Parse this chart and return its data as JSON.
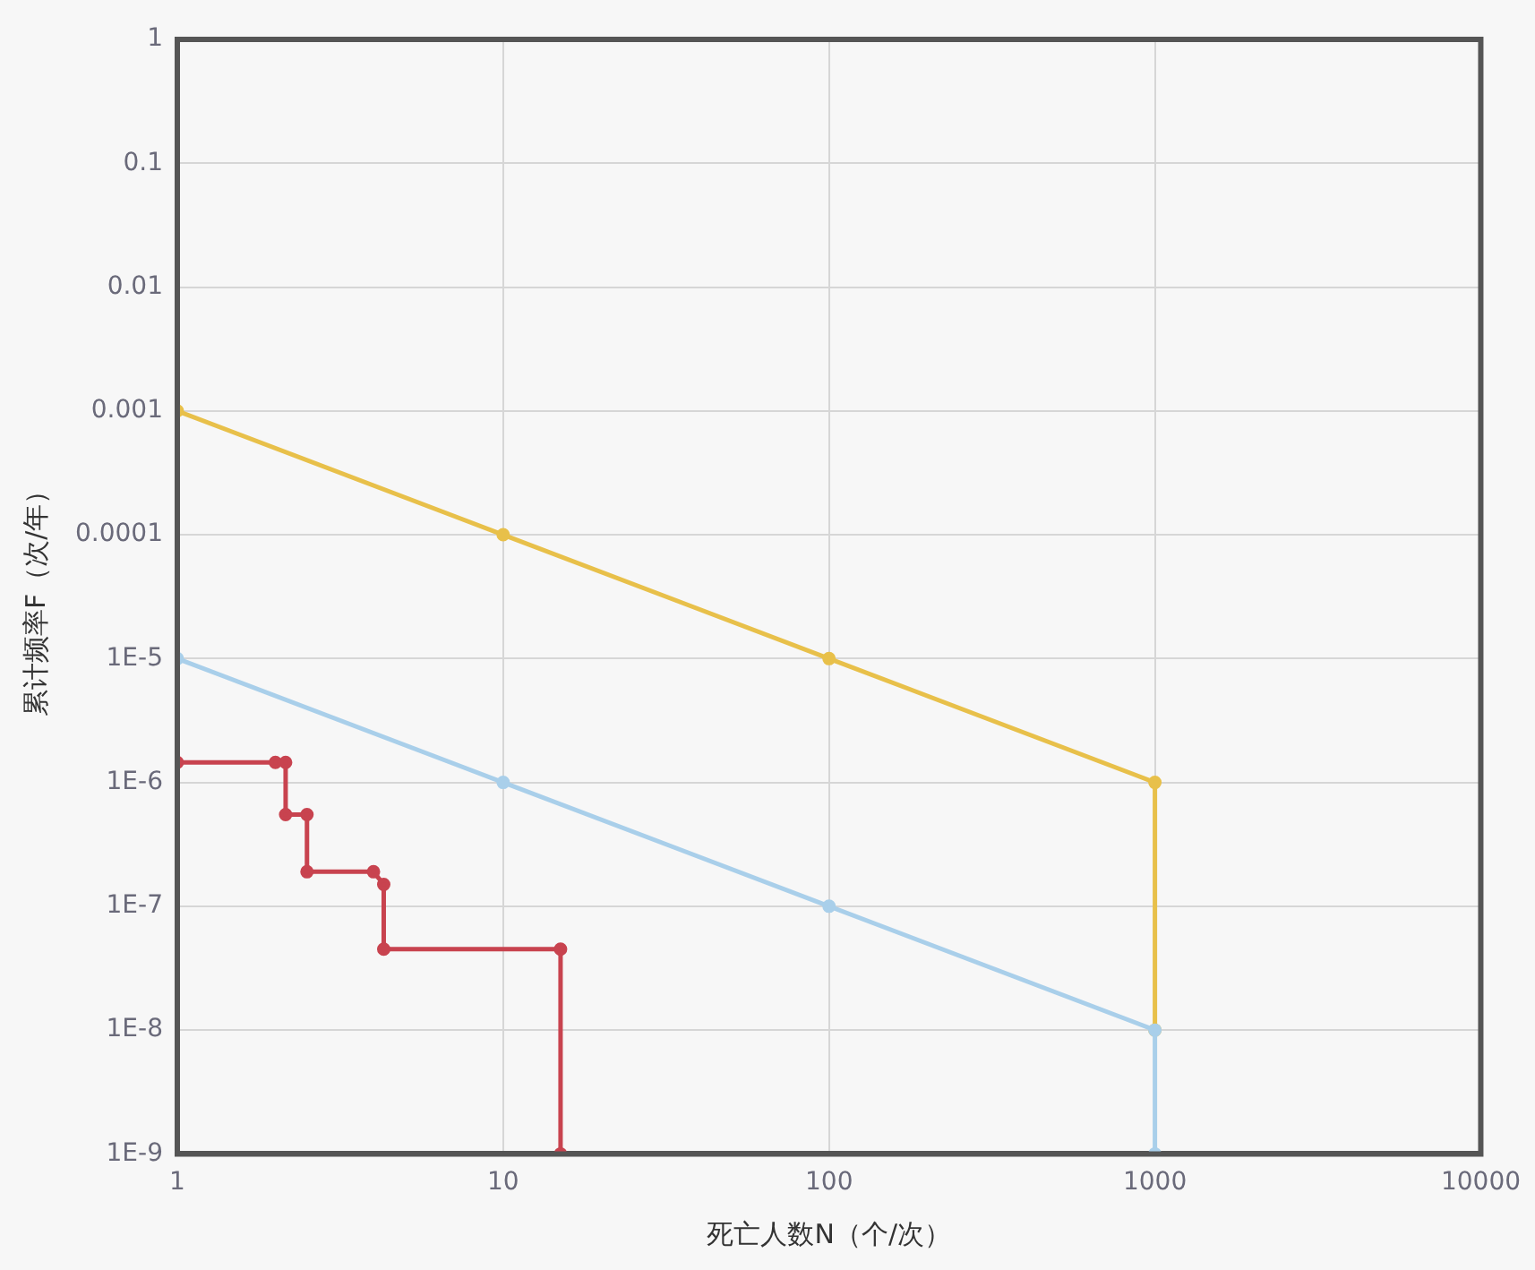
{
  "chart_data": {
    "type": "line",
    "xlabel": "死亡人数N（个/次）",
    "ylabel": "累计频率F（次/年）",
    "log": "xy",
    "grid": true,
    "legend": false,
    "marker": "circle",
    "line_style": "solid",
    "xlim": [
      1,
      10000
    ],
    "xticks": [
      1,
      10,
      100,
      1000,
      10000
    ],
    "ylim": [
      1e-09,
      1
    ],
    "yticks": [
      {
        "value": 1e-09,
        "label": "1E-9"
      },
      {
        "value": 1e-08,
        "label": "1E-8"
      },
      {
        "value": 1e-07,
        "label": "1E-7"
      },
      {
        "value": 1e-06,
        "label": "1E-6"
      },
      {
        "value": 1e-05,
        "label": "1E-5"
      },
      0.0001,
      0.001,
      0.01,
      0.1,
      1
    ],
    "series": [
      {
        "color": "#e8c04a",
        "x": [
          1,
          10,
          100,
          1000,
          1000
        ],
        "values": [
          0.001,
          0.0001,
          1e-05,
          1e-06,
          1e-08
        ]
      },
      {
        "color": "#a9cfea",
        "x": [
          1,
          10,
          100,
          1000,
          1000
        ],
        "values": [
          1e-05,
          1e-06,
          1e-07,
          1e-08,
          1e-09
        ]
      },
      {
        "color": "#c8434f",
        "x": [
          1,
          2,
          2.15,
          2.15,
          2.5,
          2.5,
          4,
          4.3,
          4.3,
          15,
          15
        ],
        "values": [
          1.45e-06,
          1.45e-06,
          1.45e-06,
          5.5e-07,
          5.5e-07,
          1.9e-07,
          1.9e-07,
          1.5e-07,
          4.5e-08,
          4.5e-08,
          1e-09
        ]
      }
    ]
  }
}
